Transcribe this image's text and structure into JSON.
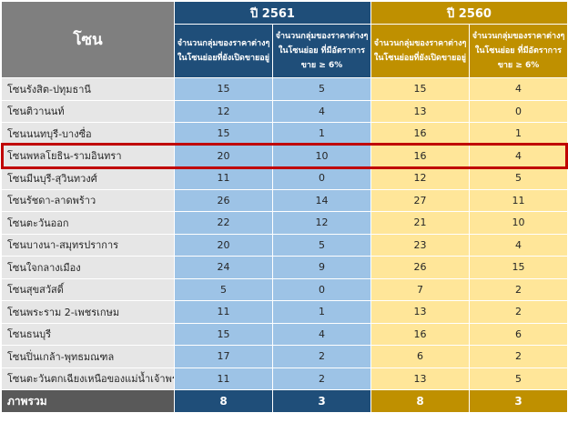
{
  "header": {
    "zone_label": "โซน",
    "year_2561": "ปี 2561",
    "year_2560": "ปี 2560",
    "col_2561_a": "จำนวนกลุ่มของราคาต่างๆในโซนย่อยที่ยังเปิดขายอยู่",
    "col_2561_b": "จำนวนกลุ่มของราคาต่างๆในโซนย่อย ที่มีอัตราการขาย ≥ 6%",
    "col_2560_a": "จำนวนกลุ่มของราคาต่างๆในโซนย่อยที่ยังเปิดขายอยู่",
    "col_2560_b": "จำนวนกลุ่มของราคาต่างๆในโซนย่อย ที่มีอัตราการขาย ≥ 6%"
  },
  "rows": [
    {
      "zone": "โซนรังสิต-ปทุมธานี",
      "y2561_open": "15",
      "y2561_rate": "5",
      "y2560_open": "15",
      "y2560_rate": "4"
    },
    {
      "zone": "โซนติวานนท์",
      "y2561_open": "12",
      "y2561_rate": "4",
      "y2560_open": "13",
      "y2560_rate": "0"
    },
    {
      "zone": "โซนนนทบุรี-บางซื่อ",
      "y2561_open": "15",
      "y2561_rate": "1",
      "y2560_open": "16",
      "y2560_rate": "1"
    },
    {
      "zone": "โซนพหลโยธิน-รามอินทรา",
      "y2561_open": "20",
      "y2561_rate": "10",
      "y2560_open": "16",
      "y2560_rate": "4"
    },
    {
      "zone": "โซนมีนบุรี-สุวินทวงศ์",
      "y2561_open": "11",
      "y2561_rate": "0",
      "y2560_open": "12",
      "y2560_rate": "5"
    },
    {
      "zone": "โซนรัชดา-ลาดพร้าว",
      "y2561_open": "26",
      "y2561_rate": "14",
      "y2560_open": "27",
      "y2560_rate": "11"
    },
    {
      "zone": "โซนตะวันออก",
      "y2561_open": "22",
      "y2561_rate": "12",
      "y2560_open": "21",
      "y2560_rate": "10"
    },
    {
      "zone": "โซนบางนา-สมุทรปราการ",
      "y2561_open": "20",
      "y2561_rate": "5",
      "y2560_open": "23",
      "y2560_rate": "4"
    },
    {
      "zone": "โซนใจกลางเมือง",
      "y2561_open": "24",
      "y2561_rate": "9",
      "y2560_open": "26",
      "y2560_rate": "15"
    },
    {
      "zone": "โซนสุขสวัสดิ์",
      "y2561_open": "5",
      "y2561_rate": "0",
      "y2560_open": "7",
      "y2560_rate": "2"
    },
    {
      "zone": "โซนพระราม 2-เพชรเกษม",
      "y2561_open": "11",
      "y2561_rate": "1",
      "y2560_open": "13",
      "y2560_rate": "2"
    },
    {
      "zone": "โซนธนบุรี",
      "y2561_open": "15",
      "y2561_rate": "4",
      "y2560_open": "16",
      "y2560_rate": "6"
    },
    {
      "zone": "โซนปิ่นเกล้า-พุทธมณฑล",
      "y2561_open": "17",
      "y2561_rate": "2",
      "y2560_open": "6",
      "y2560_rate": "2"
    },
    {
      "zone": "โซนตะวันตกเฉียงเหนือของแม่น้ำเจ้าพระยา",
      "y2561_open": "11",
      "y2561_rate": "2",
      "y2560_open": "13",
      "y2560_rate": "5"
    }
  ],
  "total": {
    "label": "ภาพรวม",
    "y2561_open": "8",
    "y2561_rate": "3",
    "y2560_open": "8",
    "y2560_rate": "3"
  },
  "highlighted_zone": "โซนพหลโยธิน-รามอินทรา",
  "colors": {
    "zone_header": "#7f7f7f",
    "year_2561": "#1f4e79",
    "year_2560": "#bf9000",
    "cells_2561": "#9dc3e6",
    "cells_2560": "#ffe699",
    "highlight_border": "#c00000"
  }
}
